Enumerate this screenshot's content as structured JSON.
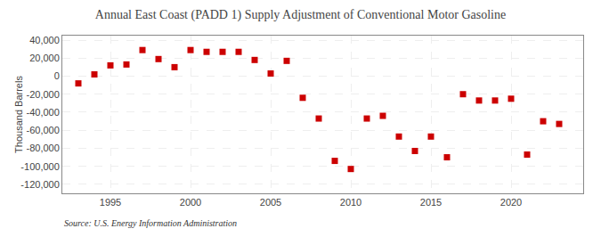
{
  "chart_data": {
    "type": "scatter",
    "title": "Annual East Coast (PADD 1) Supply Adjustment of Conventional Motor Gasoline",
    "ylabel": "Thousand Barrels",
    "source": "Source: U.S. Energy Information Administration",
    "x": [
      1993,
      1994,
      1995,
      1996,
      1997,
      1998,
      1999,
      2000,
      2001,
      2002,
      2003,
      2004,
      2005,
      2006,
      2007,
      2008,
      2009,
      2010,
      2011,
      2012,
      2013,
      2014,
      2015,
      2016,
      2017,
      2018,
      2019,
      2020,
      2021,
      2022,
      2023
    ],
    "values": [
      -8000,
      2000,
      12000,
      13000,
      29000,
      19000,
      10000,
      29000,
      27000,
      27000,
      27000,
      18000,
      3000,
      17000,
      -24000,
      -47000,
      -94000,
      -103000,
      -47000,
      -44000,
      -67000,
      -83000,
      -67000,
      -90000,
      -20000,
      -27000,
      -27000,
      -25000,
      -87000,
      -50000,
      -53000
    ],
    "color": "#cc0000",
    "marker": "square",
    "xlim": [
      1992,
      2024.5
    ],
    "xticks": [
      1995,
      2000,
      2005,
      2010,
      2015,
      2020
    ],
    "ylim": [
      -130000,
      45000
    ],
    "yticks": [
      {
        "value": -120000,
        "label": "-120,000"
      },
      {
        "value": -100000,
        "label": "-100,000"
      },
      {
        "value": -80000,
        "label": "-80,000"
      },
      {
        "value": -60000,
        "label": "-60,000"
      },
      {
        "value": -40000,
        "label": "-40,000"
      },
      {
        "value": -20000,
        "label": "-20,000"
      },
      0,
      {
        "value": 20000,
        "label": "20,000"
      },
      {
        "value": 40000,
        "label": "40,000"
      }
    ],
    "grid": true
  }
}
